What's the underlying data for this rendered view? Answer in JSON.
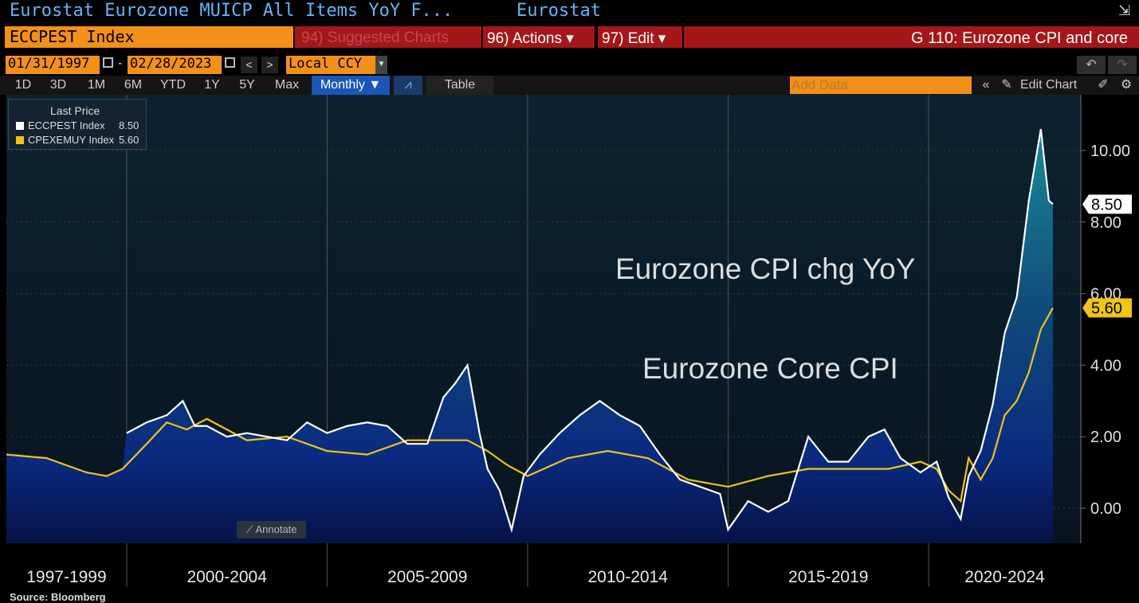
{
  "header": {
    "security_title": "Eurostat Eurozone MUICP All Items YoY F...",
    "source_name": "Eurostat",
    "ticker": "ECCPEST Index",
    "menu_suggested": "94) Suggested Charts",
    "menu_actions": "96) Actions ▾",
    "menu_edit": "97) Edit ▾",
    "chart_title": "G 110: Eurozone CPI and core"
  },
  "controls": {
    "start_date": "01/31/1997",
    "end_date": "02/28/2023",
    "currency": "Local CCY",
    "ranges": [
      "1D",
      "3D",
      "1M",
      "6M",
      "YTD",
      "1Y",
      "5Y",
      "Max"
    ],
    "frequency": "Monthly ▼",
    "table_label": "Table",
    "add_data_placeholder": "Add Data",
    "edit_chart": "Edit Chart"
  },
  "legend": {
    "heading": "Last Price",
    "items": [
      {
        "name": "ECCPEST Index",
        "value": "8.50",
        "color": "#ffffff"
      },
      {
        "name": "CPEXEMUY Index",
        "value": "5.60",
        "color": "#f0c419"
      }
    ]
  },
  "annotate_label": "Annotate",
  "source": "Source:  Bloomberg",
  "chart_data": {
    "type": "area",
    "ylim": [
      -1.0,
      11.5
    ],
    "yticks": [
      "10.00",
      "8.00",
      "6.00",
      "4.00",
      "2.00",
      "0.00"
    ],
    "xlim": [
      1997.0,
      2023.3
    ],
    "period_labels": [
      "1997-1999",
      "2000-2004",
      "2005-2009",
      "2010-2014",
      "2015-2019",
      "2020-2024"
    ],
    "annotations": [
      {
        "text": "Eurozone CPI chg YoY",
        "color": "#ffffff"
      },
      {
        "text": "Eurozone Core CPI",
        "color": "#f0c419"
      }
    ],
    "last_values": {
      "headline": "8.50",
      "core": "5.60"
    },
    "series": [
      {
        "name": "ECCPEST Index",
        "color": "#ffffff",
        "x": [
          2000.0,
          2000.5,
          2001.0,
          2001.4,
          2001.7,
          2002.0,
          2002.5,
          2003.0,
          2003.5,
          2004.0,
          2004.5,
          2005.0,
          2005.5,
          2006.0,
          2006.5,
          2007.0,
          2007.5,
          2007.9,
          2008.2,
          2008.5,
          2008.8,
          2009.0,
          2009.3,
          2009.6,
          2009.9,
          2010.3,
          2010.8,
          2011.3,
          2011.8,
          2012.3,
          2012.8,
          2013.3,
          2013.8,
          2014.3,
          2014.8,
          2015.0,
          2015.5,
          2016.0,
          2016.5,
          2017.0,
          2017.5,
          2018.0,
          2018.5,
          2018.9,
          2019.3,
          2019.8,
          2020.2,
          2020.5,
          2020.8,
          2021.0,
          2021.3,
          2021.6,
          2021.9,
          2022.2,
          2022.5,
          2022.8,
          2023.0,
          2023.1
        ],
        "y": [
          2.1,
          2.4,
          2.6,
          3.0,
          2.3,
          2.3,
          2.0,
          2.1,
          2.0,
          1.9,
          2.4,
          2.1,
          2.3,
          2.4,
          2.3,
          1.8,
          1.8,
          3.1,
          3.5,
          4.0,
          2.1,
          1.1,
          0.5,
          -0.6,
          0.9,
          1.5,
          2.1,
          2.6,
          3.0,
          2.6,
          2.3,
          1.5,
          0.8,
          0.6,
          0.4,
          -0.6,
          0.2,
          -0.1,
          0.2,
          2.0,
          1.3,
          1.3,
          2.0,
          2.2,
          1.4,
          1.0,
          1.3,
          0.3,
          -0.3,
          0.9,
          1.6,
          2.9,
          4.9,
          5.9,
          8.6,
          10.6,
          8.6,
          8.5
        ],
        "fill": true
      },
      {
        "name": "CPEXEMUY Index",
        "color": "#f0c419",
        "x": [
          1997.0,
          1998.0,
          1999.0,
          1999.5,
          1999.9,
          2000.5,
          2001.0,
          2001.5,
          2002.0,
          2003.0,
          2004.0,
          2005.0,
          2006.0,
          2007.0,
          2008.0,
          2008.5,
          2009.0,
          2009.5,
          2010.0,
          2011.0,
          2012.0,
          2013.0,
          2014.0,
          2015.0,
          2016.0,
          2017.0,
          2018.0,
          2019.0,
          2019.8,
          2020.2,
          2020.5,
          2020.8,
          2021.0,
          2021.3,
          2021.6,
          2021.9,
          2022.2,
          2022.5,
          2022.8,
          2023.1
        ],
        "y": [
          1.5,
          1.4,
          1.0,
          0.9,
          1.1,
          1.8,
          2.4,
          2.2,
          2.5,
          1.9,
          2.0,
          1.6,
          1.5,
          1.9,
          1.9,
          1.9,
          1.6,
          1.2,
          0.9,
          1.4,
          1.6,
          1.4,
          0.8,
          0.6,
          0.9,
          1.1,
          1.1,
          1.1,
          1.3,
          1.1,
          0.5,
          0.2,
          1.4,
          0.8,
          1.4,
          2.6,
          3.0,
          3.8,
          5.0,
          5.6
        ],
        "fill": false
      }
    ]
  }
}
